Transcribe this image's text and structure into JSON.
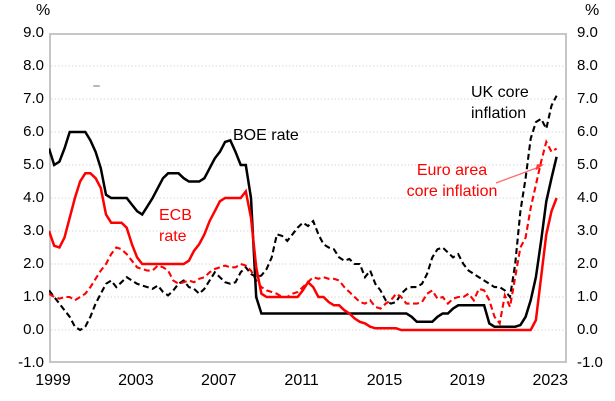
{
  "axes": {
    "y_unit_left": "%",
    "y_unit_right": "%"
  },
  "annotations": {
    "boe": "BOE rate",
    "ecb": {
      "line1": "ECB",
      "line2": "rate"
    },
    "uk": {
      "line1": "UK core",
      "line2": "inflation"
    },
    "euro": {
      "line1": "Euro area",
      "line2": "core inflation"
    }
  },
  "colors": {
    "black_series": "#000000",
    "red_series": "#ff0000",
    "grid": "#d8d8d8",
    "border": "#c6c6c6",
    "text": "#000000"
  },
  "chart_data": {
    "type": "line",
    "title": "",
    "grid": true,
    "legend_position": "inline-annotations",
    "x_axis": {
      "range": [
        1999,
        2024
      ],
      "ticks": [
        "1999",
        "2003",
        "2007",
        "2011",
        "2015",
        "2019",
        "2023"
      ],
      "tick_years": [
        1999,
        2003,
        2007,
        2011,
        2015,
        2019,
        2023
      ]
    },
    "y_axis": {
      "label": "%",
      "range": [
        -1.0,
        9.0
      ],
      "ticks": [
        "9.0",
        "8.0",
        "7.0",
        "6.0",
        "5.0",
        "4.0",
        "3.0",
        "2.0",
        "1.0",
        "0.0",
        "-1.0"
      ],
      "tick_values": [
        9,
        8,
        7,
        6,
        5,
        4,
        3,
        2,
        1,
        0,
        -1
      ],
      "gridline_values": [
        8,
        7,
        6,
        5,
        4,
        3,
        2,
        1,
        0
      ]
    },
    "x_start": 1999.0,
    "x_step": 0.25,
    "series": [
      {
        "name": "UK core inflation",
        "color": "#000000",
        "style": "dashed",
        "values": [
          1.2,
          1.0,
          0.8,
          0.6,
          0.4,
          0.1,
          0.0,
          0.1,
          0.4,
          0.8,
          1.1,
          1.4,
          1.5,
          1.3,
          1.45,
          1.6,
          1.5,
          1.4,
          1.35,
          1.3,
          1.25,
          1.35,
          1.15,
          1.05,
          1.2,
          1.4,
          1.5,
          1.3,
          1.25,
          1.1,
          1.25,
          1.5,
          1.75,
          1.6,
          1.45,
          1.4,
          1.45,
          1.75,
          1.9,
          1.7,
          1.6,
          1.65,
          1.85,
          2.2,
          2.9,
          2.85,
          2.7,
          2.9,
          3.1,
          3.25,
          3.15,
          3.3,
          2.9,
          2.6,
          2.5,
          2.45,
          2.2,
          2.1,
          2.15,
          2.0,
          2.0,
          1.6,
          1.8,
          1.4,
          1.2,
          0.9,
          0.8,
          0.85,
          1.1,
          1.25,
          1.3,
          1.3,
          1.4,
          1.7,
          2.2,
          2.45,
          2.5,
          2.35,
          2.2,
          2.3,
          2.0,
          1.8,
          1.7,
          1.6,
          1.5,
          1.4,
          1.3,
          1.3,
          1.2,
          1.0,
          2.0,
          3.6,
          4.6,
          5.8,
          6.3,
          6.4,
          6.1,
          6.8,
          7.1
        ]
      },
      {
        "name": "Euro area core inflation",
        "color": "#ff0000",
        "style": "dashed",
        "values": [
          1.1,
          1.0,
          0.95,
          1.0,
          1.0,
          0.9,
          1.0,
          1.1,
          1.3,
          1.55,
          1.8,
          2.0,
          2.3,
          2.5,
          2.45,
          2.3,
          2.1,
          1.9,
          1.85,
          1.8,
          1.8,
          1.95,
          1.9,
          1.8,
          1.5,
          1.4,
          1.45,
          1.5,
          1.45,
          1.55,
          1.6,
          1.75,
          1.85,
          1.9,
          1.95,
          1.9,
          1.9,
          2.0,
          1.95,
          1.8,
          1.5,
          1.3,
          1.2,
          1.15,
          1.1,
          1.0,
          1.0,
          1.1,
          1.15,
          1.3,
          1.45,
          1.6,
          1.55,
          1.6,
          1.55,
          1.55,
          1.5,
          1.3,
          1.15,
          1.0,
          0.85,
          0.8,
          0.9,
          0.7,
          0.65,
          0.8,
          0.9,
          1.1,
          1.0,
          0.8,
          0.8,
          0.8,
          0.85,
          1.1,
          1.2,
          0.95,
          1.0,
          0.8,
          0.95,
          1.0,
          1.0,
          1.1,
          0.9,
          1.25,
          1.2,
          0.9,
          0.4,
          0.2,
          1.05,
          0.7,
          1.6,
          2.5,
          2.8,
          3.7,
          4.4,
          5.1,
          5.7,
          5.4,
          5.5
        ]
      },
      {
        "name": "BOE rate",
        "color": "#000000",
        "style": "solid",
        "values": [
          5.5,
          5.0,
          5.1,
          5.5,
          6.0,
          6.0,
          6.0,
          6.0,
          5.75,
          5.4,
          4.9,
          4.1,
          4.0,
          4.0,
          4.0,
          4.0,
          3.8,
          3.6,
          3.5,
          3.75,
          4.0,
          4.3,
          4.6,
          4.75,
          4.75,
          4.75,
          4.6,
          4.5,
          4.5,
          4.5,
          4.6,
          4.9,
          5.2,
          5.4,
          5.7,
          5.75,
          5.4,
          5.0,
          5.0,
          4.0,
          1.0,
          0.5,
          0.5,
          0.5,
          0.5,
          0.5,
          0.5,
          0.5,
          0.5,
          0.5,
          0.5,
          0.5,
          0.5,
          0.5,
          0.5,
          0.5,
          0.5,
          0.5,
          0.5,
          0.5,
          0.5,
          0.5,
          0.5,
          0.5,
          0.5,
          0.5,
          0.5,
          0.5,
          0.5,
          0.5,
          0.4,
          0.25,
          0.25,
          0.25,
          0.25,
          0.4,
          0.5,
          0.5,
          0.65,
          0.75,
          0.75,
          0.75,
          0.75,
          0.75,
          0.75,
          0.2,
          0.1,
          0.1,
          0.1,
          0.1,
          0.1,
          0.15,
          0.4,
          0.9,
          1.6,
          2.7,
          3.9,
          4.6,
          5.25
        ]
      },
      {
        "name": "ECB rate",
        "color": "#ff0000",
        "style": "solid",
        "values": [
          3.0,
          2.55,
          2.5,
          2.8,
          3.4,
          4.0,
          4.5,
          4.75,
          4.75,
          4.6,
          4.3,
          3.5,
          3.25,
          3.25,
          3.25,
          3.1,
          2.6,
          2.2,
          2.0,
          2.0,
          2.0,
          2.0,
          2.0,
          2.0,
          2.0,
          2.0,
          2.0,
          2.1,
          2.4,
          2.6,
          2.9,
          3.3,
          3.6,
          3.9,
          4.0,
          4.0,
          4.0,
          4.0,
          4.2,
          3.4,
          1.9,
          1.1,
          1.0,
          1.0,
          1.0,
          1.0,
          1.0,
          1.0,
          1.0,
          1.2,
          1.45,
          1.3,
          1.0,
          1.0,
          0.85,
          0.75,
          0.75,
          0.6,
          0.5,
          0.35,
          0.25,
          0.2,
          0.1,
          0.05,
          0.05,
          0.05,
          0.05,
          0.05,
          0.0,
          0.0,
          0.0,
          0.0,
          0.0,
          0.0,
          0.0,
          0.0,
          0.0,
          0.0,
          0.0,
          0.0,
          0.0,
          0.0,
          0.0,
          0.0,
          0.0,
          0.0,
          0.0,
          0.0,
          0.0,
          0.0,
          0.0,
          0.0,
          0.0,
          0.0,
          0.3,
          1.6,
          2.9,
          3.6,
          4.0
        ]
      }
    ]
  }
}
